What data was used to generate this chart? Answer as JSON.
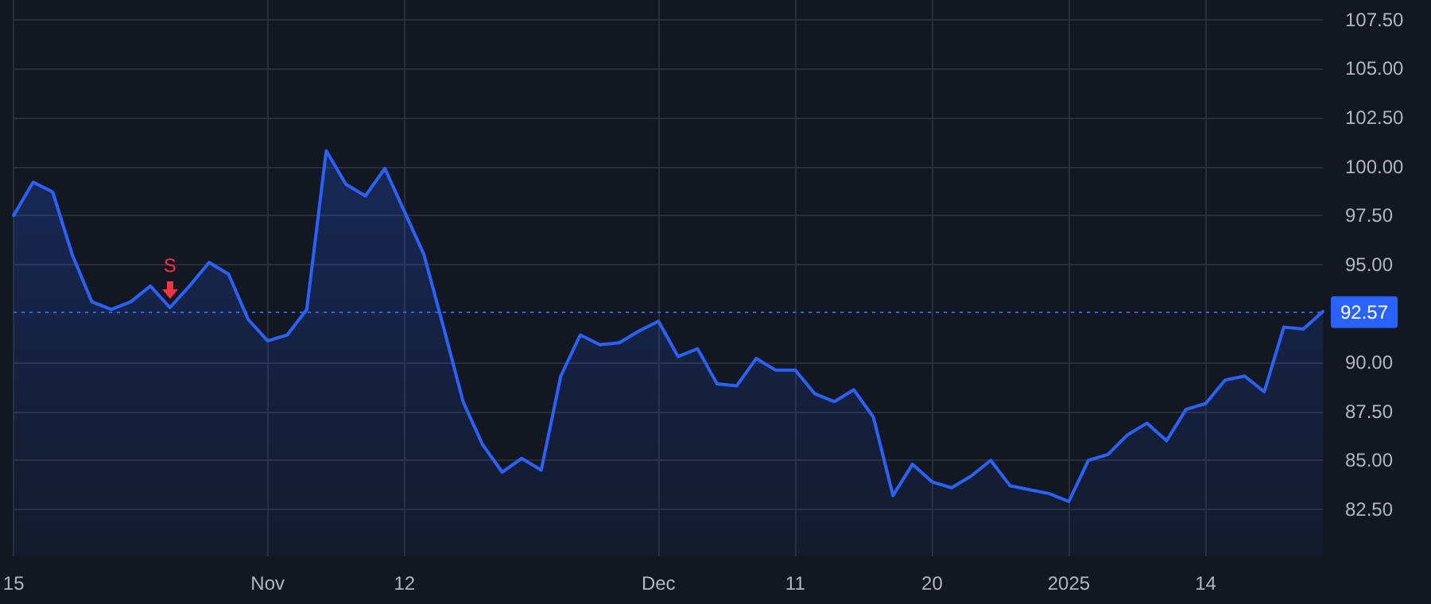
{
  "chart_data": {
    "type": "area",
    "categories": [
      "15",
      null,
      null,
      null,
      null,
      null,
      null,
      null,
      null,
      null,
      null,
      null,
      null,
      "Nov",
      null,
      null,
      null,
      null,
      null,
      null,
      "12",
      null,
      null,
      null,
      null,
      null,
      null,
      null,
      null,
      null,
      null,
      null,
      null,
      "Dec",
      null,
      null,
      null,
      null,
      null,
      null,
      "11",
      null,
      null,
      null,
      null,
      null,
      null,
      "20",
      null,
      null,
      null,
      null,
      null,
      null,
      "2025",
      null,
      null,
      null,
      null,
      null,
      null,
      "14",
      null,
      null,
      null,
      null,
      null,
      null
    ],
    "series": [
      {
        "color": "#2962ff",
        "values": [
          97.5,
          99.2,
          98.7,
          95.5,
          93.1,
          92.7,
          93.1,
          93.9,
          92.8,
          93.9,
          95.1,
          94.5,
          92.2,
          91.1,
          91.4,
          92.7,
          100.8,
          99.1,
          98.5,
          99.9,
          97.7,
          95.5,
          91.8,
          88.0,
          85.8,
          84.4,
          85.1,
          84.5,
          89.3,
          91.4,
          90.9,
          91.0,
          91.6,
          92.1,
          90.3,
          90.7,
          88.9,
          88.8,
          90.2,
          89.6,
          89.6,
          88.4,
          88.0,
          88.6,
          87.2,
          83.2,
          84.8,
          83.9,
          83.6,
          84.2,
          85.0,
          83.7,
          83.5,
          83.3,
          82.9,
          85.0,
          85.3,
          86.3,
          86.9,
          86.0,
          87.6,
          87.9,
          89.1,
          89.3,
          88.5,
          91.8,
          91.7,
          92.6
        ]
      }
    ],
    "ylim": [
      80.1,
      108.5
    ],
    "yticks": [
      {
        "value": 82.5,
        "label": "82.50"
      },
      {
        "value": 85,
        "label": "85.00"
      },
      {
        "value": 87.5,
        "label": "87.50"
      },
      {
        "value": 90,
        "label": "90.00"
      },
      {
        "value": 95,
        "label": "95.00"
      },
      {
        "value": 97.5,
        "label": "97.50"
      },
      {
        "value": 100,
        "label": "100.00"
      },
      {
        "value": 102.5,
        "label": "102.50"
      },
      {
        "value": 105,
        "label": "105.00"
      },
      {
        "value": 107.5,
        "label": "107.50"
      }
    ],
    "ref_lines": [
      {
        "axis": "y",
        "value": 92.57,
        "label": "92.57",
        "color": "#2962ff",
        "line_style": "dotted"
      }
    ],
    "annotations": [
      {
        "text": "S",
        "y": 92.8
      }
    ],
    "grid": true,
    "marker": "none",
    "line_style": "solid"
  }
}
